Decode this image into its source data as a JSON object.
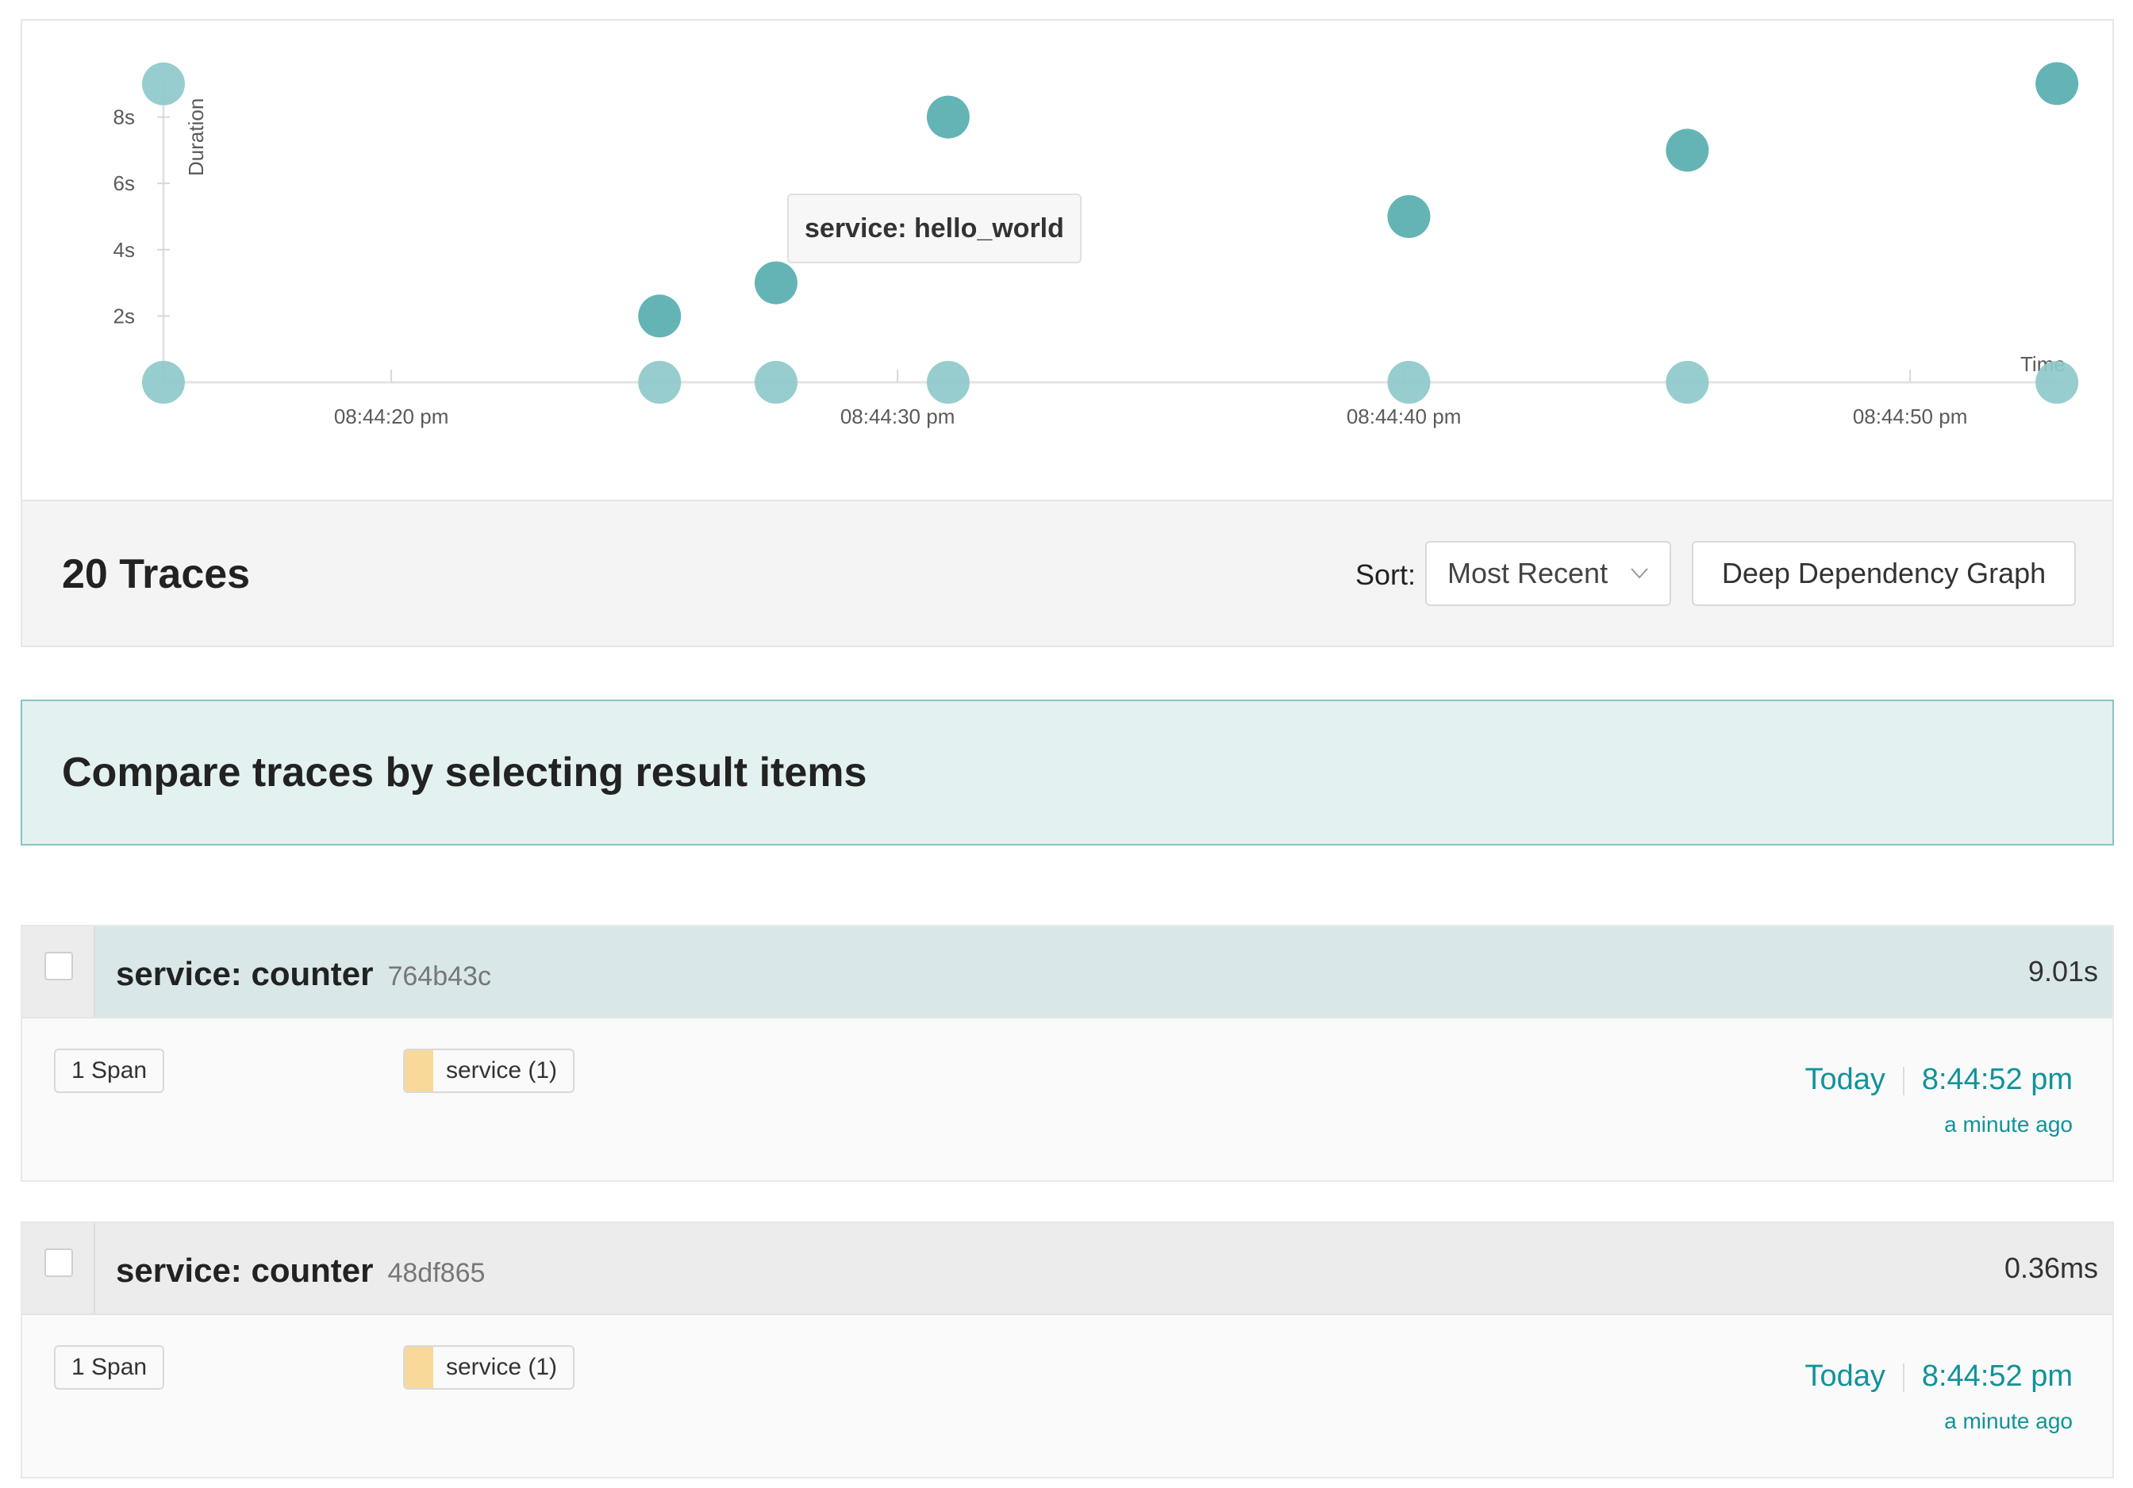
{
  "chart_data": {
    "type": "scatter",
    "xlabel": "Time",
    "ylabel": "Duration",
    "x_ticks": [
      "08:44:20 pm",
      "08:44:30 pm",
      "08:44:40 pm",
      "08:44:50 pm"
    ],
    "y_ticks": [
      "2s",
      "4s",
      "6s",
      "8s"
    ],
    "xlim": [
      "08:44:15.5 pm",
      "08:44:53 pm"
    ],
    "ylim": [
      0,
      9.5
    ],
    "grid": false,
    "points": [
      {
        "time": "08:44:15.5 pm",
        "duration_s": 9.0
      },
      {
        "time": "08:44:15.5 pm",
        "duration_s": 0
      },
      {
        "time": "08:44:25.3 pm",
        "duration_s": 2.0
      },
      {
        "time": "08:44:25.3 pm",
        "duration_s": 0
      },
      {
        "time": "08:44:27.6 pm",
        "duration_s": 3.0
      },
      {
        "time": "08:44:27.6 pm",
        "duration_s": 0
      },
      {
        "time": "08:44:31 pm",
        "duration_s": 8.0
      },
      {
        "time": "08:44:31 pm",
        "duration_s": 0
      },
      {
        "time": "08:44:40.1 pm",
        "duration_s": 5.0
      },
      {
        "time": "08:44:40.1 pm",
        "duration_s": 0
      },
      {
        "time": "08:44:45.6 pm",
        "duration_s": 7.0
      },
      {
        "time": "08:44:45.6 pm",
        "duration_s": 0
      },
      {
        "time": "08:44:52.9 pm",
        "duration_s": 9.01
      },
      {
        "time": "08:44:52.9 pm",
        "duration_s": 0
      }
    ],
    "tooltip": "service: hello_world"
  },
  "colors": {
    "point_high": "#57aeb0",
    "point_low": "#8ec9ca",
    "accent_teal": "#11939a",
    "service_swatch": "#f8d99a"
  },
  "header": {
    "traces_count": "20 Traces",
    "sort_label": "Sort:",
    "sort_value": "Most Recent",
    "ddg_button": "Deep Dependency Graph"
  },
  "banner": {
    "text": "Compare traces by selecting result items"
  },
  "traces": [
    {
      "title": "service: counter",
      "id": "764b43c",
      "duration": "9.01s",
      "spans": "1 Span",
      "service_tag": "service (1)",
      "day": "Today",
      "time": "8:44:52 pm",
      "ago": "a minute ago"
    },
    {
      "title": "service: counter",
      "id": "48df865",
      "duration": "0.36ms",
      "spans": "1 Span",
      "service_tag": "service (1)",
      "day": "Today",
      "time": "8:44:52 pm",
      "ago": "a minute ago"
    }
  ]
}
